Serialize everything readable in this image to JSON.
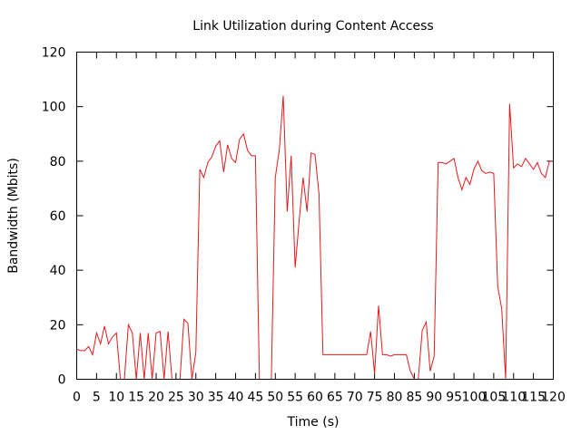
{
  "chart_data": {
    "type": "line",
    "title": "Link Utilization during Content Access",
    "xlabel": "Time (s)",
    "ylabel": "Bandwidth (Mbits)",
    "xlim": [
      0,
      120
    ],
    "ylim": [
      0,
      120
    ],
    "grid": false,
    "legend": "none",
    "x_ticks": [
      0,
      5,
      10,
      15,
      20,
      25,
      30,
      35,
      40,
      45,
      50,
      55,
      60,
      65,
      70,
      75,
      80,
      85,
      90,
      95,
      100,
      105,
      110,
      115,
      120
    ],
    "y_ticks": [
      0,
      20,
      40,
      60,
      80,
      100,
      120
    ],
    "series": [
      {
        "color": "#e41a1c",
        "x": [
          0,
          1,
          2,
          3,
          4,
          5,
          6,
          7,
          8,
          9,
          10,
          11,
          12,
          13,
          14,
          15,
          16,
          17,
          18,
          19,
          20,
          21,
          22,
          23,
          24,
          25,
          26,
          27,
          28,
          29,
          30,
          31,
          32,
          33,
          34,
          35,
          36,
          37,
          38,
          39,
          40,
          41,
          42,
          43,
          44,
          45,
          46,
          47,
          48,
          49,
          50,
          51,
          52,
          53,
          54,
          55,
          56,
          57,
          58,
          59,
          60,
          61,
          62,
          63,
          64,
          65,
          66,
          67,
          68,
          69,
          70,
          71,
          72,
          73,
          74,
          75,
          76,
          77,
          78,
          79,
          80,
          81,
          82,
          83,
          84,
          85,
          86,
          87,
          88,
          89,
          90,
          91,
          92,
          93,
          94,
          95,
          96,
          97,
          98,
          99,
          100,
          101,
          102,
          103,
          104,
          105,
          106,
          107,
          108,
          109,
          110,
          111,
          112,
          113,
          114,
          115,
          116,
          117,
          118,
          119,
          120
        ],
        "y": [
          11,
          10.5,
          10.5,
          12,
          9,
          17,
          13,
          19.5,
          13,
          15.5,
          17,
          0,
          0,
          20,
          17,
          0,
          17,
          0,
          17,
          0,
          17,
          17.5,
          0,
          17.5,
          0,
          0,
          0,
          22,
          20.5,
          0,
          10,
          77,
          74,
          79.5,
          81.5,
          85.5,
          87.5,
          76,
          86,
          81,
          79.5,
          88,
          90,
          84,
          82,
          82,
          0,
          0,
          0,
          0,
          74,
          84,
          104,
          61.5,
          82,
          41,
          58,
          74,
          61.5,
          83,
          82.5,
          68,
          9,
          9,
          9,
          9,
          9,
          9,
          9,
          9,
          9,
          9,
          9,
          9,
          17.5,
          2,
          27,
          9,
          9,
          8.5,
          9,
          9,
          9,
          9,
          3,
          0,
          0,
          18,
          21,
          3,
          8.5,
          79.5,
          79.5,
          79,
          80,
          81,
          74,
          69.5,
          74,
          71.5,
          77,
          80,
          76.5,
          75.5,
          76,
          75.5,
          34,
          26,
          0,
          101,
          77.5,
          79,
          78,
          81,
          79,
          77,
          79.5,
          75.5,
          74,
          80,
          80
        ]
      }
    ]
  }
}
